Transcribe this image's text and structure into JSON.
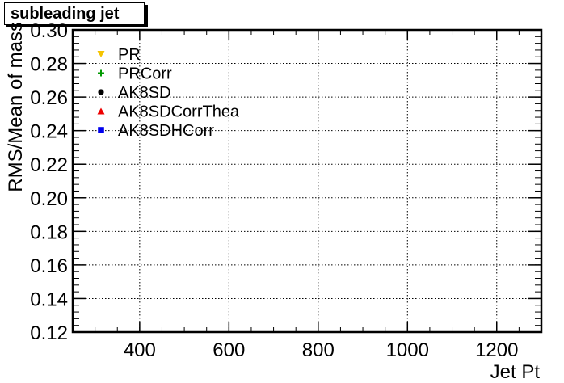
{
  "chart_data": {
    "type": "scatter",
    "title": "subleading jet",
    "xlabel": "Jet Pt",
    "ylabel": "RMS/Mean of mass",
    "xlim": [
      250,
      1300
    ],
    "ylim": [
      0.12,
      0.3
    ],
    "xticks": [
      400,
      600,
      800,
      1000,
      1200
    ],
    "xtick_labels": [
      "400",
      "600",
      "800",
      "1000",
      "1200"
    ],
    "yticks": [
      0.12,
      0.14,
      0.16,
      0.18,
      0.2,
      0.22,
      0.24,
      0.26,
      0.28,
      0.3
    ],
    "ytick_labels": [
      "0.12",
      "0.14",
      "0.16",
      "0.18",
      "0.20",
      "0.22",
      "0.24",
      "0.26",
      "0.28",
      "0.30"
    ],
    "grid": true,
    "legend_position": "top-left",
    "series": [
      {
        "name": "PR",
        "marker": "triangle-down",
        "color": "#f5c400",
        "points": []
      },
      {
        "name": "PRCorr",
        "marker": "plus",
        "color": "#009900",
        "points": []
      },
      {
        "name": "AK8SD",
        "marker": "circle",
        "color": "#000000",
        "points": []
      },
      {
        "name": "AK8SDCorrThea",
        "marker": "triangle-up",
        "color": "#ee0000",
        "points": []
      },
      {
        "name": "AK8SDHCorr",
        "marker": "square",
        "color": "#0000ee",
        "points": []
      }
    ]
  }
}
